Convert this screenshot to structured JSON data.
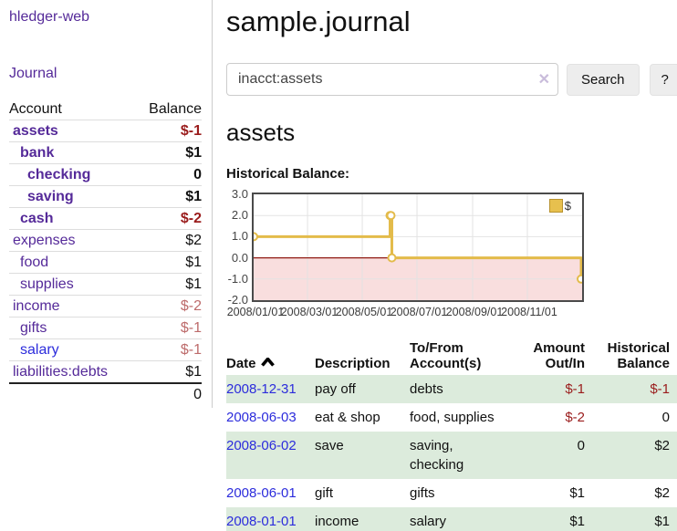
{
  "colors": {
    "link_purple": "#552a99",
    "link_blue": "#2c2cdc",
    "negative_strong": "#9a1c1c",
    "negative_faded": "#bd6b6b",
    "row_stripe_green": "#dcebdc",
    "chart_line_gold": "#e3bb4a",
    "chart_marker_fill": "#ffffff",
    "chart_negative_fill": "#f9dede",
    "chart_zero_line": "#8f1a12",
    "chart_border": "#4a4a4a",
    "grid": "#e3e3e3",
    "button_bg": "#ededed",
    "input_border": "#cccccc",
    "clear_icon_color": "#c9bcdb"
  },
  "sidebar": {
    "brand": "hledger-web",
    "nav": {
      "journal_label": "Journal"
    },
    "accounts_table": {
      "headers": {
        "account": "Account",
        "balance": "Balance"
      },
      "rows": [
        {
          "label": "assets",
          "depth": 0,
          "bold": true,
          "balance": "$-1",
          "balance_tone": "strong-neg"
        },
        {
          "label": "bank",
          "depth": 1,
          "bold": true,
          "balance": "$1"
        },
        {
          "label": "checking",
          "depth": 2,
          "bold": true,
          "balance": "0"
        },
        {
          "label": "saving",
          "depth": 2,
          "bold": true,
          "balance": "$1"
        },
        {
          "label": "cash",
          "depth": 1,
          "bold": true,
          "balance": "$-2",
          "balance_tone": "strong-neg"
        },
        {
          "label": "expenses",
          "depth": 0,
          "bold": false,
          "balance": "$2"
        },
        {
          "label": "food",
          "depth": 1,
          "bold": false,
          "balance": "$1"
        },
        {
          "label": "supplies",
          "depth": 1,
          "bold": false,
          "balance": "$1"
        },
        {
          "label": "income",
          "depth": 0,
          "bold": false,
          "balance": "$-2",
          "balance_tone": "faded-neg"
        },
        {
          "label": "gifts",
          "depth": 1,
          "bold": false,
          "balance": "$-1",
          "balance_tone": "faded-neg"
        },
        {
          "label": "salary",
          "depth": 1,
          "bold": false,
          "balance": "$-1",
          "balance_tone": "faded-neg",
          "link_tone": "blue"
        },
        {
          "label": "liabilities:debts",
          "depth": 0,
          "bold": false,
          "balance": "$1"
        }
      ],
      "total": "0"
    }
  },
  "main": {
    "title": "sample.journal",
    "search": {
      "value": "inacct:assets",
      "clear_icon": "✕",
      "search_label": "Search",
      "help_label": "?"
    },
    "account_heading": "assets",
    "register_table": {
      "headers": {
        "date": "Date",
        "description": "Description",
        "account": "To/From Account(s)",
        "amount": "Amount Out/In",
        "balance": "Historical Balance"
      },
      "rows": [
        {
          "date": "2008-12-31",
          "description": "pay off",
          "accounts": "debts",
          "amount": "$-1",
          "balance": "$-1",
          "amount_tone": "neg",
          "balance_tone": "neg",
          "stripe": true
        },
        {
          "date": "2008-06-03",
          "description": "eat & shop",
          "accounts": "food, supplies",
          "amount": "$-2",
          "balance": "0",
          "amount_tone": "neg",
          "stripe": false
        },
        {
          "date": "2008-06-02",
          "description": "save",
          "accounts": "saving, checking",
          "amount": "0",
          "balance": "$2",
          "stripe": true
        },
        {
          "date": "2008-06-01",
          "description": "gift",
          "accounts": "gifts",
          "amount": "$1",
          "balance": "$2",
          "stripe": false
        },
        {
          "date": "2008-01-01",
          "description": "income",
          "accounts": "salary",
          "amount": "$1",
          "balance": "$1",
          "stripe": true
        }
      ]
    }
  },
  "chart_data": {
    "type": "line",
    "step": true,
    "title": "Historical Balance:",
    "legend": "$",
    "legend_position": "top-right",
    "grid": true,
    "negative_region_shaded": true,
    "x_range": [
      "2008-01-01",
      "2009-01-01"
    ],
    "x_ticks": [
      "2008/01/01",
      "2008/03/01",
      "2008/05/01",
      "2008/07/01",
      "2008/09/01",
      "2008/11/01"
    ],
    "y_ticks": [
      "3.0",
      "2.0",
      "1.0",
      "0.0",
      "-1.0",
      "-2.0"
    ],
    "ylim": [
      -2,
      3
    ],
    "series": [
      {
        "name": "$",
        "points": [
          [
            "2008-01-01",
            1
          ],
          [
            "2008-06-01",
            2
          ],
          [
            "2008-06-02",
            2
          ],
          [
            "2008-06-03",
            0
          ],
          [
            "2008-12-31",
            -1
          ]
        ]
      }
    ]
  }
}
